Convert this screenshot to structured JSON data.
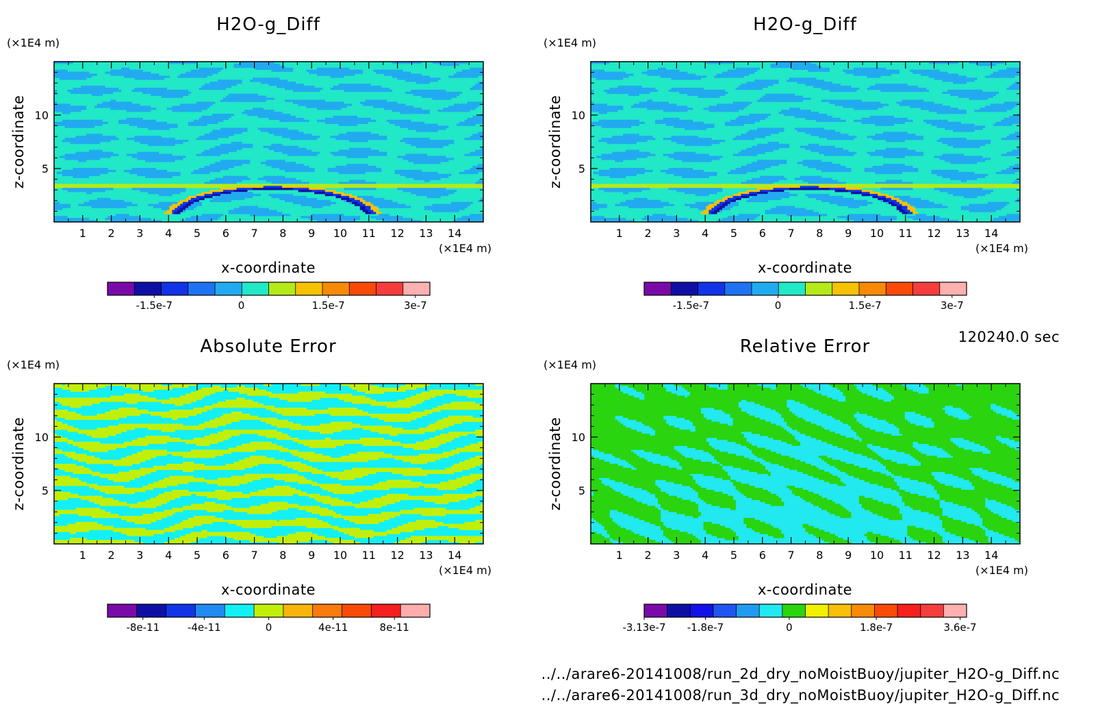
{
  "chart_data": [
    {
      "type": "heatmap",
      "title": "H2O-g_Diff",
      "xlabel": "x-coordinate",
      "ylabel": "z-coordinate",
      "x_unit": "(×1E4 m)",
      "y_unit": "(×1E4 m)",
      "xlim": [
        0,
        15
      ],
      "ylim": [
        0,
        15
      ],
      "x_ticks": [
        "1",
        "2",
        "3",
        "4",
        "5",
        "6",
        "7",
        "8",
        "9",
        "10",
        "11",
        "12",
        "13",
        "14"
      ],
      "y_ticks": [
        "5",
        "10"
      ],
      "colorbar": {
        "tick_labels": [
          "-1.5e-7",
          "0",
          "1.5e-7",
          "3e-7"
        ],
        "colors": [
          "#7a0aa8",
          "#0f0fa5",
          "#1233e8",
          "#1f73f2",
          "#22aaf0",
          "#21e8c6",
          "#b4ea1a",
          "#f7c203",
          "#f98a08",
          "#f94a08",
          "#f53d3d",
          "#ffb0b0"
        ]
      },
      "pattern": "diff"
    },
    {
      "type": "heatmap",
      "title": "H2O-g_Diff",
      "xlabel": "x-coordinate",
      "ylabel": "z-coordinate",
      "x_unit": "(×1E4 m)",
      "y_unit": "(×1E4 m)",
      "xlim": [
        0,
        15
      ],
      "ylim": [
        0,
        15
      ],
      "x_ticks": [
        "1",
        "2",
        "3",
        "4",
        "5",
        "6",
        "7",
        "8",
        "9",
        "10",
        "11",
        "12",
        "13",
        "14"
      ],
      "y_ticks": [
        "5",
        "10"
      ],
      "colorbar": {
        "tick_labels": [
          "-1.5e-7",
          "0",
          "1.5e-7",
          "3e-7"
        ],
        "colors": [
          "#7a0aa8",
          "#0f0fa5",
          "#1233e8",
          "#1f73f2",
          "#22aaf0",
          "#21e8c6",
          "#b4ea1a",
          "#f7c203",
          "#f98a08",
          "#f94a08",
          "#f53d3d",
          "#ffb0b0"
        ]
      },
      "pattern": "diff"
    },
    {
      "type": "heatmap",
      "title": "Absolute Error",
      "xlabel": "x-coordinate",
      "ylabel": "z-coordinate",
      "x_unit": "(×1E4 m)",
      "y_unit": "(×1E4 m)",
      "xlim": [
        0,
        15
      ],
      "ylim": [
        0,
        15
      ],
      "x_ticks": [
        "1",
        "2",
        "3",
        "4",
        "5",
        "6",
        "7",
        "8",
        "9",
        "10",
        "11",
        "12",
        "13",
        "14"
      ],
      "y_ticks": [
        "5",
        "10"
      ],
      "colorbar": {
        "tick_labels": [
          "-8e-11",
          "-4e-11",
          "0",
          "4e-11",
          "8e-11"
        ],
        "colors": [
          "#7a0aa8",
          "#0f0fa5",
          "#1233e8",
          "#1f8af2",
          "#12f0f5",
          "#c2ef0a",
          "#f7b50a",
          "#f97b0c",
          "#f94a08",
          "#f51f1f",
          "#ffacac"
        ]
      },
      "pattern": "abs"
    },
    {
      "type": "heatmap",
      "title": "Relative Error",
      "xlabel": "x-coordinate",
      "ylabel": "z-coordinate",
      "x_unit": "(×1E4 m)",
      "y_unit": "(×1E4 m)",
      "xlim": [
        0,
        15
      ],
      "ylim": [
        0,
        15
      ],
      "x_ticks": [
        "1",
        "2",
        "3",
        "4",
        "5",
        "6",
        "7",
        "8",
        "9",
        "10",
        "11",
        "12",
        "13",
        "14"
      ],
      "y_ticks": [
        "5",
        "10"
      ],
      "colorbar": {
        "tick_labels": [
          "-3.13e-7",
          "-1.8e-7",
          "0",
          "1.8e-7",
          "3.6e-7"
        ],
        "colors": [
          "#7a0aa8",
          "#0f0fa5",
          "#1212e8",
          "#1f56f2",
          "#1f9cf2",
          "#22e8f0",
          "#2ad40e",
          "#f0f000",
          "#f8be08",
          "#f98a08",
          "#f94a08",
          "#f51f1f",
          "#f53d3d",
          "#ffb0b0"
        ]
      },
      "pattern": "rel"
    }
  ],
  "time_label": "120240.0 sec",
  "footer": {
    "file1": "../../arare6-20141008/run_2d_dry_noMoistBuoy/jupiter_H2O-g_Diff.nc",
    "file2": "../../arare6-20141008/run_3d_dry_noMoistBuoy/jupiter_H2O-g_Diff.nc"
  }
}
